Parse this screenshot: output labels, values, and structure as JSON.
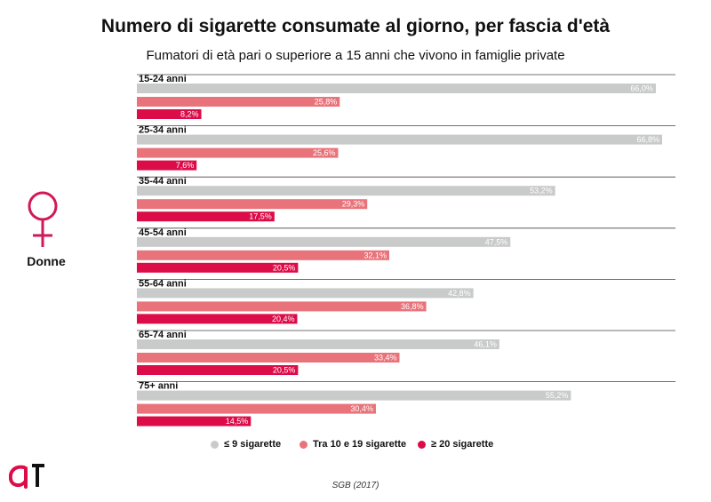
{
  "title": "Numero di sigarette consumate al giorno, per fascia d'età",
  "subtitle": "Fumatori di età pari o superiore a 15 anni che vivono in famiglie private",
  "side_label": "Donne",
  "source": "SGB (2017)",
  "colors": {
    "light": "#c9cbca",
    "medium": "#e9737a",
    "dark": "#dc0c48",
    "icon": "#d1195a"
  },
  "chart_data": {
    "type": "bar",
    "orientation": "horizontal",
    "categories": [
      "15-24 anni",
      "25-34 anni",
      "35-44 anni",
      "45-54 anni",
      "55-64 anni",
      "65-74 anni",
      "75+ anni"
    ],
    "series": [
      {
        "name": "≤ 9 sigarette",
        "values": [
          66.0,
          66.8,
          53.2,
          47.5,
          42.8,
          46.1,
          55.2
        ],
        "labels": [
          "66,0%",
          "66,8%",
          "53,2%",
          "47,5%",
          "42,8%",
          "46,1%",
          "55,2%"
        ]
      },
      {
        "name": "Tra 10 e 19 sigarette",
        "values": [
          25.8,
          25.6,
          29.3,
          32.1,
          36.8,
          33.4,
          30.4
        ],
        "labels": [
          "25,8%",
          "25,6%",
          "29,3%",
          "32,1%",
          "36,8%",
          "33,4%",
          "30,4%"
        ]
      },
      {
        "name": "≥ 20 sigarette",
        "values": [
          8.2,
          7.6,
          17.5,
          20.5,
          20.4,
          20.5,
          14.5
        ],
        "labels": [
          "8,2%",
          "7,6%",
          "17,5%",
          "20,5%",
          "20,4%",
          "20,5%",
          "14,5%"
        ]
      }
    ],
    "xlim": [
      0,
      66.8
    ],
    "grid": false,
    "legend_position": "bottom"
  }
}
